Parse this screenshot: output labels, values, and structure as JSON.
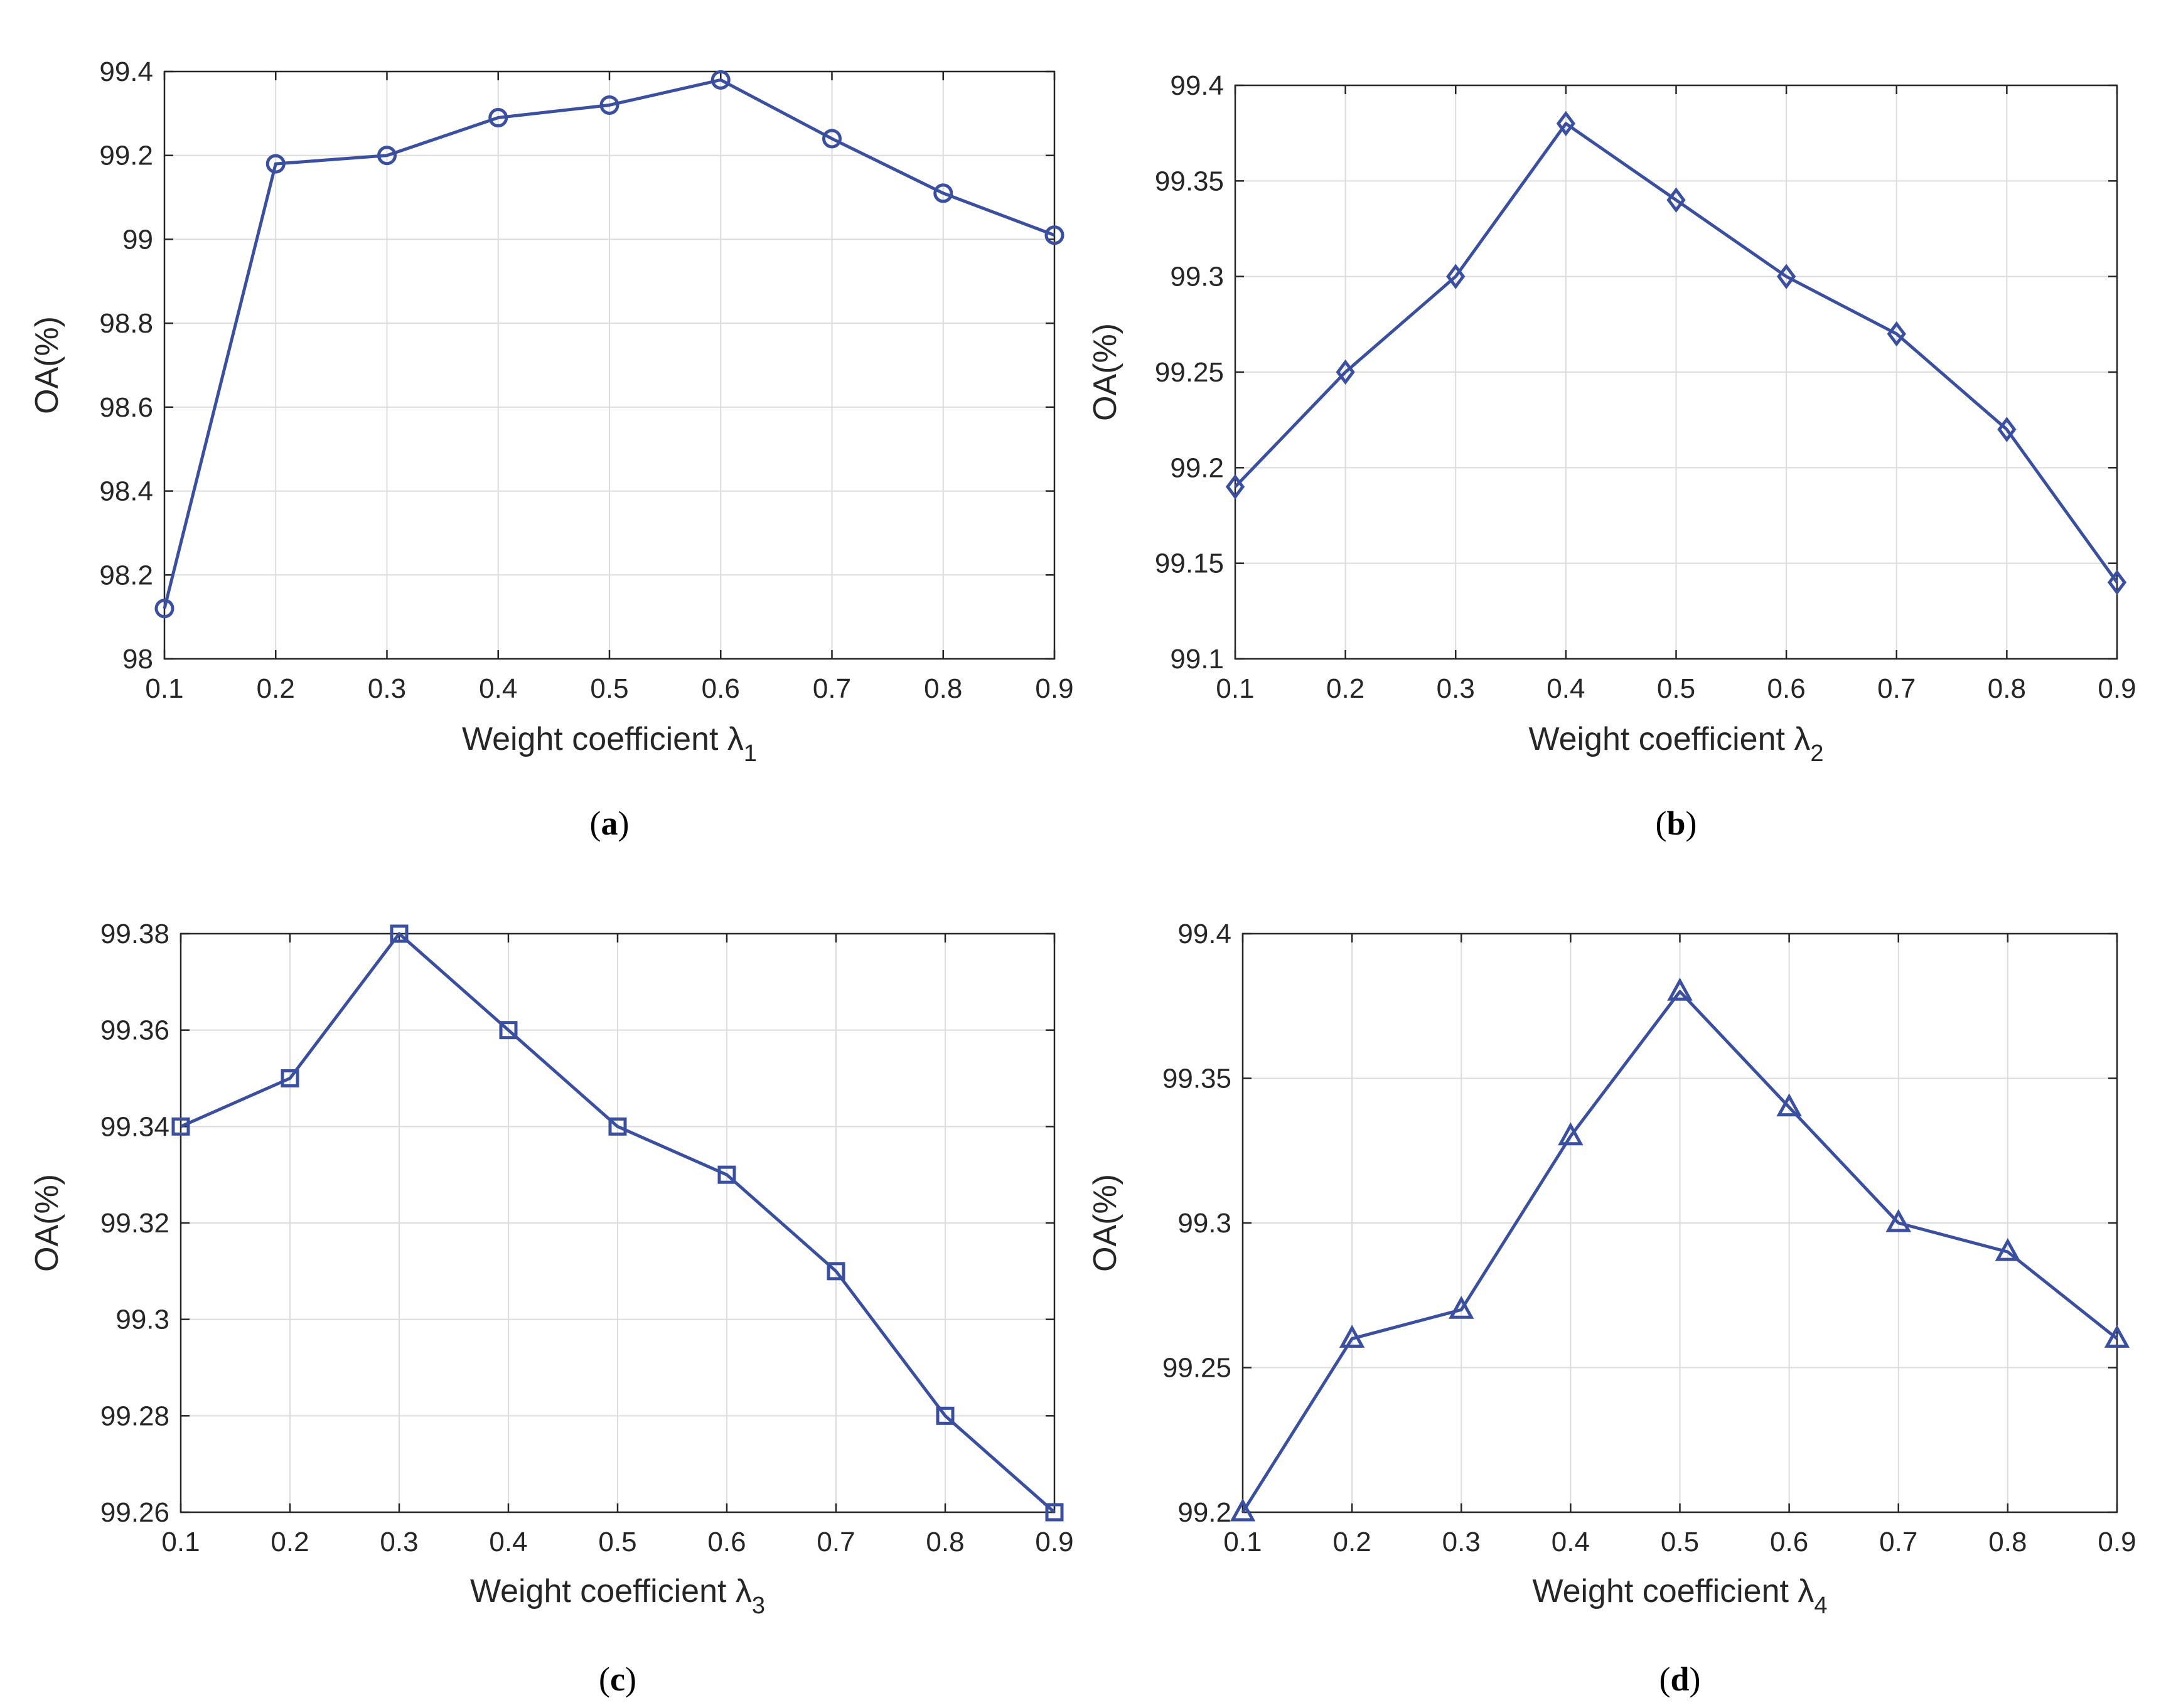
{
  "chart_data": [
    {
      "type": "line",
      "panel": "a",
      "caption": "(a)",
      "caption_letter": "a",
      "xlabel": "Weight coefficient λ",
      "xlabel_subscript": "1",
      "ylabel": "OA(%)",
      "x": [
        0.1,
        0.2,
        0.3,
        0.4,
        0.5,
        0.6,
        0.7,
        0.8,
        0.9
      ],
      "values": [
        98.12,
        99.18,
        99.2,
        99.29,
        99.32,
        99.38,
        99.24,
        99.11,
        99.01
      ],
      "xlim": [
        0.1,
        0.9
      ],
      "ylim": [
        98,
        99.4
      ],
      "xticks": [
        "0.1",
        "0.2",
        "0.3",
        "0.4",
        "0.5",
        "0.6",
        "0.7",
        "0.8",
        "0.9"
      ],
      "yticks": [
        "98",
        "98.2",
        "98.4",
        "98.6",
        "98.8",
        "99",
        "99.2",
        "99.4"
      ],
      "marker": "circle",
      "grid": true,
      "color": "#3a4fa0"
    },
    {
      "type": "line",
      "panel": "b",
      "caption": "(b)",
      "caption_letter": "b",
      "xlabel": "Weight coefficient λ",
      "xlabel_subscript": "2",
      "ylabel": "OA(%)",
      "x": [
        0.1,
        0.2,
        0.3,
        0.4,
        0.5,
        0.6,
        0.7,
        0.8,
        0.9
      ],
      "values": [
        99.19,
        99.25,
        99.3,
        99.38,
        99.34,
        99.3,
        99.27,
        99.22,
        99.14
      ],
      "xlim": [
        0.1,
        0.9
      ],
      "ylim": [
        99.1,
        99.4
      ],
      "xticks": [
        "0.1",
        "0.2",
        "0.3",
        "0.4",
        "0.5",
        "0.6",
        "0.7",
        "0.8",
        "0.9"
      ],
      "yticks": [
        "99.1",
        "99.15",
        "99.2",
        "99.25",
        "99.3",
        "99.35",
        "99.4"
      ],
      "marker": "diamond",
      "grid": true,
      "color": "#3a4fa0"
    },
    {
      "type": "line",
      "panel": "c",
      "caption": "(c)",
      "caption_letter": "c",
      "xlabel": "Weight coefficient λ",
      "xlabel_subscript": "3",
      "ylabel": "OA(%)",
      "x": [
        0.1,
        0.2,
        0.3,
        0.4,
        0.5,
        0.6,
        0.7,
        0.8,
        0.9
      ],
      "values": [
        99.34,
        99.35,
        99.38,
        99.36,
        99.34,
        99.33,
        99.31,
        99.28,
        99.26
      ],
      "xlim": [
        0.1,
        0.9
      ],
      "ylim": [
        99.26,
        99.38
      ],
      "xticks": [
        "0.1",
        "0.2",
        "0.3",
        "0.4",
        "0.5",
        "0.6",
        "0.7",
        "0.8",
        "0.9"
      ],
      "yticks": [
        "99.26",
        "99.28",
        "99.3",
        "99.32",
        "99.34",
        "99.36",
        "99.38"
      ],
      "marker": "square",
      "grid": true,
      "color": "#3a4fa0"
    },
    {
      "type": "line",
      "panel": "d",
      "caption": "(d)",
      "caption_letter": "d",
      "xlabel": "Weight coefficient λ",
      "xlabel_subscript": "4",
      "ylabel": "OA(%)",
      "x": [
        0.1,
        0.2,
        0.3,
        0.4,
        0.5,
        0.6,
        0.7,
        0.8,
        0.9
      ],
      "values": [
        99.2,
        99.26,
        99.27,
        99.33,
        99.38,
        99.34,
        99.3,
        99.29,
        99.26
      ],
      "xlim": [
        0.1,
        0.9
      ],
      "ylim": [
        99.2,
        99.4
      ],
      "xticks": [
        "0.1",
        "0.2",
        "0.3",
        "0.4",
        "0.5",
        "0.6",
        "0.7",
        "0.8",
        "0.9"
      ],
      "yticks": [
        "99.2",
        "99.25",
        "99.3",
        "99.35",
        "99.4"
      ],
      "marker": "triangle",
      "grid": true,
      "color": "#3a4fa0"
    }
  ]
}
